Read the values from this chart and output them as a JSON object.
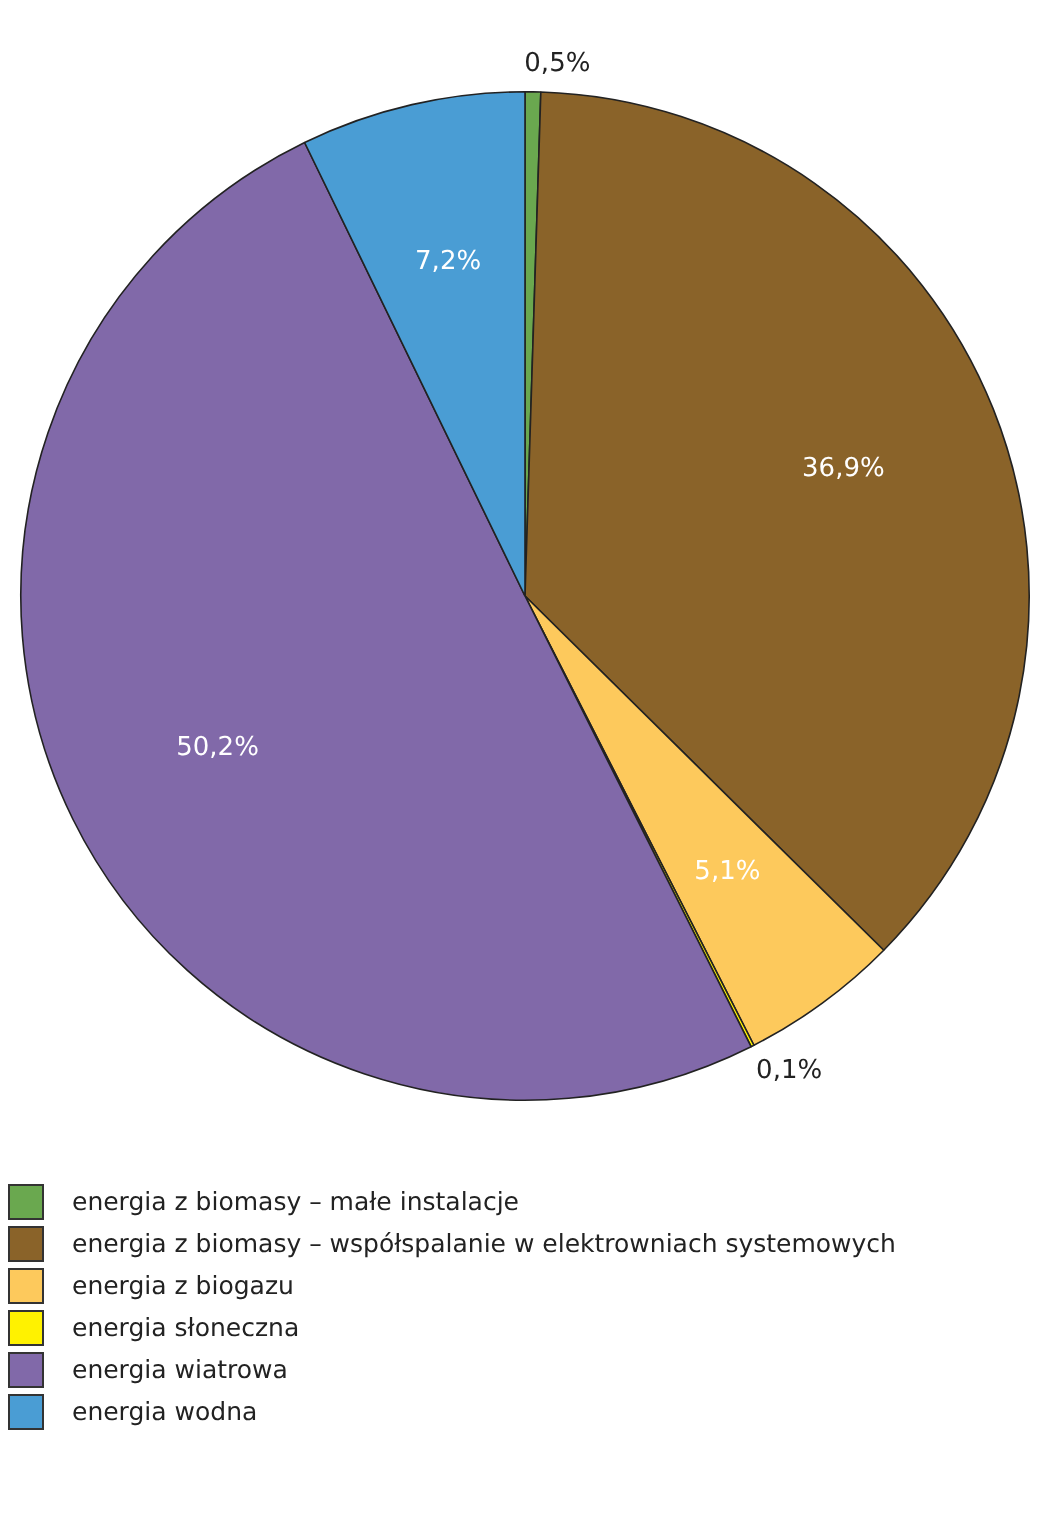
{
  "chart_data": {
    "type": "pie",
    "categories": [
      "energia z biomasy – małe instalacje",
      "energia z biomasy – współspalanie w elektrowniach systemowych",
      "energia z biogazu",
      "energia słoneczna",
      "energia wiatrowa",
      "energia wodna"
    ],
    "values": [
      0.5,
      36.9,
      5.1,
      0.1,
      50.2,
      7.2
    ],
    "colors": [
      "#6aa84f",
      "#8a6329",
      "#fdc95c",
      "#fff200",
      "#8169a9",
      "#4a9dd4"
    ],
    "value_labels": [
      "0,5%",
      "36,9%",
      "5,1%",
      "0,1%",
      "50,2%",
      "7,2%"
    ],
    "legend": "bottom left"
  }
}
